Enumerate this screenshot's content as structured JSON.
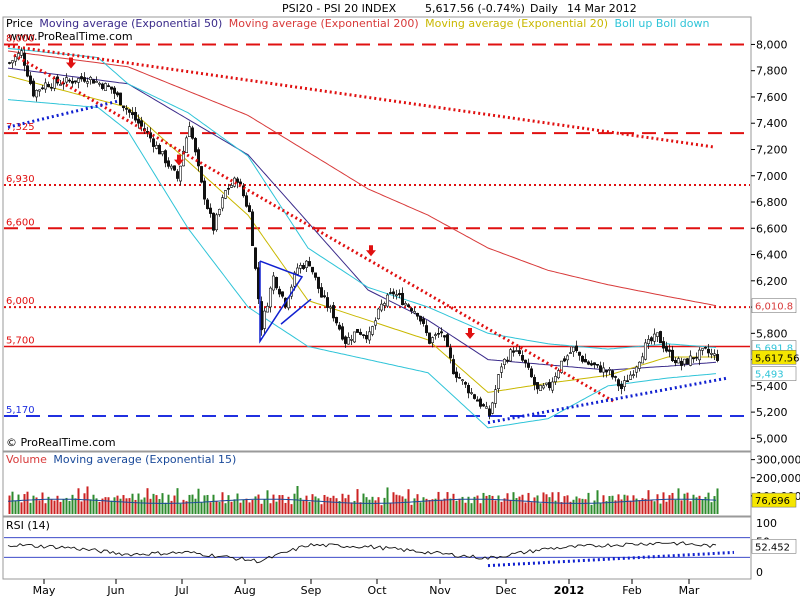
{
  "header": {
    "symbol": "PSI20 - PSI 20 INDEX",
    "quote": "5,617.56 (-0.74%)",
    "period": "Daily",
    "date": "14 Mar 2012"
  },
  "watermark_top": "www.ProRealTime.com",
  "watermark_bottom": "© ProRealTime.com",
  "price_legend": {
    "price": "Price",
    "ema50": "Moving average (Exponential 50)",
    "ema200": "Moving average (Exponential 200)",
    "ema20": "Moving average (Exponential 20)",
    "boll": "Boll up Boll down"
  },
  "volume_legend": {
    "volume": "Volume",
    "ma": "Moving average (Exponential 15)"
  },
  "rsi_legend": "RSI (14)",
  "colors": {
    "up": "#2e8b2e",
    "down": "#cc2222",
    "ema50": "#3a2a8a",
    "ema200": "#d83a3a",
    "ema20": "#c9b800",
    "boll": "#2fc4d8",
    "trend_red": "#e01010",
    "trend_blue": "#1020d0",
    "level_red": "#e01010",
    "level_blue": "#2030e0"
  },
  "chart_data": [
    {
      "type": "candlestick",
      "title": "PSI20 - PSI 20 INDEX",
      "period": "Daily",
      "x_tick_labels": [
        "May",
        "Jun",
        "Jul",
        "Aug",
        "Sep",
        "Oct",
        "Nov",
        "Dec",
        "2012",
        "Feb",
        "Mar"
      ],
      "y_tick_labels": [
        "8,000",
        "7,800",
        "7,600",
        "7,400",
        "7,200",
        "7,000",
        "6,800",
        "6,600",
        "6,400",
        "6,200",
        "6,000",
        "5,800",
        "5,600",
        "5,400",
        "5,200",
        "5,000"
      ],
      "ylim": [
        4980,
        8110
      ],
      "last_close": 5617.56,
      "last_close_label": "5,617.56",
      "change_pct": -0.74,
      "boll_up_last": "5,691.8",
      "boll_down_last": "5,493",
      "ema200_last": "6,010.8",
      "levels": [
        {
          "value": 8000,
          "label": "8,000",
          "color": "red",
          "style": "dashed"
        },
        {
          "value": 7325,
          "label": "7,325",
          "color": "red",
          "style": "dashed"
        },
        {
          "value": 6930,
          "label": "6,930",
          "color": "red",
          "style": "dotted"
        },
        {
          "value": 6600,
          "label": "6,600",
          "color": "red",
          "style": "dashed"
        },
        {
          "value": 6000,
          "label": "6,000",
          "color": "red",
          "style": "dotted"
        },
        {
          "value": 5700,
          "label": "5,700",
          "color": "red",
          "style": "solid"
        },
        {
          "value": 5170,
          "label": "5,170",
          "color": "blue",
          "style": "dashed"
        }
      ],
      "trendlines": [
        {
          "color": "red",
          "style": "dotted",
          "from": {
            "bar": 0,
            "y": 7990
          },
          "to": {
            "bar": 235,
            "y": 7220
          }
        },
        {
          "color": "red",
          "style": "dotted",
          "from": {
            "bar": 2,
            "y": 7920
          },
          "to": {
            "bar": 202,
            "y": 5280
          }
        },
        {
          "color": "blue",
          "style": "dotted",
          "from": {
            "bar": 0,
            "y": 7370
          },
          "to": {
            "bar": 37,
            "y": 7570
          }
        },
        {
          "color": "blue",
          "style": "dotted",
          "from": {
            "bar": 160,
            "y": 5120
          },
          "to": {
            "bar": 240,
            "y": 5460
          }
        }
      ],
      "series": [
        {
          "name": "Price",
          "anchors": [
            [
              0,
              7860
            ],
            [
              4,
              7940
            ],
            [
              8,
              7630
            ],
            [
              12,
              7700
            ],
            [
              20,
              7720
            ],
            [
              26,
              7750
            ],
            [
              34,
              7660
            ],
            [
              40,
              7480
            ],
            [
              46,
              7320
            ],
            [
              52,
              7120
            ],
            [
              56,
              6980
            ],
            [
              60,
              7400
            ],
            [
              64,
              6930
            ],
            [
              68,
              6600
            ],
            [
              72,
              6880
            ],
            [
              76,
              6980
            ],
            [
              80,
              6720
            ],
            [
              84,
              5850
            ],
            [
              88,
              6230
            ],
            [
              92,
              6030
            ],
            [
              96,
              6300
            ],
            [
              100,
              6340
            ],
            [
              104,
              6080
            ],
            [
              108,
              5940
            ],
            [
              112,
              5740
            ],
            [
              116,
              5820
            ],
            [
              120,
              5780
            ],
            [
              124,
              6010
            ],
            [
              128,
              6110
            ],
            [
              132,
              6030
            ],
            [
              136,
              5960
            ],
            [
              140,
              5740
            ],
            [
              144,
              5810
            ],
            [
              148,
              5520
            ],
            [
              152,
              5400
            ],
            [
              156,
              5290
            ],
            [
              160,
              5180
            ],
            [
              164,
              5560
            ],
            [
              168,
              5680
            ],
            [
              172,
              5560
            ],
            [
              176,
              5360
            ],
            [
              180,
              5400
            ],
            [
              184,
              5580
            ],
            [
              188,
              5680
            ],
            [
              192,
              5580
            ],
            [
              196,
              5540
            ],
            [
              200,
              5500
            ],
            [
              204,
              5380
            ],
            [
              208,
              5520
            ],
            [
              212,
              5700
            ],
            [
              216,
              5780
            ],
            [
              220,
              5640
            ],
            [
              224,
              5560
            ],
            [
              228,
              5620
            ],
            [
              232,
              5660
            ],
            [
              236,
              5617.56
            ]
          ]
        },
        {
          "name": "Moving average (Exponential 50)",
          "anchors": [
            [
              0,
              7820
            ],
            [
              40,
              7700
            ],
            [
              80,
              7160
            ],
            [
              120,
              6130
            ],
            [
              140,
              5900
            ],
            [
              160,
              5600
            ],
            [
              180,
              5560
            ],
            [
              200,
              5520
            ],
            [
              220,
              5550
            ],
            [
              236,
              5580
            ]
          ]
        },
        {
          "name": "Moving average (Exponential 200)",
          "anchors": [
            [
              0,
              7950
            ],
            [
              40,
              7830
            ],
            [
              80,
              7460
            ],
            [
              120,
              6900
            ],
            [
              140,
              6700
            ],
            [
              160,
              6450
            ],
            [
              180,
              6280
            ],
            [
              200,
              6170
            ],
            [
              220,
              6080
            ],
            [
              236,
              6010.8
            ]
          ]
        },
        {
          "name": "Moving average (Exponential 20)",
          "anchors": [
            [
              0,
              7760
            ],
            [
              40,
              7520
            ],
            [
              80,
              6700
            ],
            [
              100,
              6050
            ],
            [
              120,
              5900
            ],
            [
              140,
              5750
            ],
            [
              160,
              5350
            ],
            [
              180,
              5420
            ],
            [
              200,
              5480
            ],
            [
              220,
              5620
            ],
            [
              236,
              5620
            ]
          ]
        },
        {
          "name": "Boll up",
          "anchors": [
            [
              0,
              7970
            ],
            [
              30,
              7900
            ],
            [
              40,
              7700
            ],
            [
              60,
              7480
            ],
            [
              80,
              7150
            ],
            [
              100,
              6450
            ],
            [
              120,
              6150
            ],
            [
              140,
              6000
            ],
            [
              160,
              5800
            ],
            [
              180,
              5720
            ],
            [
              200,
              5680
            ],
            [
              220,
              5720
            ],
            [
              236,
              5691.8
            ]
          ]
        },
        {
          "name": "Boll down",
          "anchors": [
            [
              0,
              7580
            ],
            [
              30,
              7520
            ],
            [
              40,
              7340
            ],
            [
              60,
              6600
            ],
            [
              80,
              6000
            ],
            [
              100,
              5700
            ],
            [
              120,
              5600
            ],
            [
              140,
              5500
            ],
            [
              160,
              5080
            ],
            [
              180,
              5150
            ],
            [
              200,
              5400
            ],
            [
              220,
              5460
            ],
            [
              236,
              5493
            ]
          ]
        }
      ],
      "arrows": [
        {
          "bar": 21,
          "y": 7840
        },
        {
          "bar": 57,
          "y": 7100
        },
        {
          "bar": 121,
          "y": 6410
        },
        {
          "bar": 154,
          "y": 5780
        }
      ]
    },
    {
      "type": "bar",
      "title": "Volume",
      "y_tick_labels": [
        "300,000",
        "200,000",
        "100,000"
      ],
      "ylim": [
        0,
        320000
      ],
      "last_ma_label": "76,696",
      "avg_volume": 92000,
      "ma_level": 78000
    },
    {
      "type": "line",
      "title": "RSI (14)",
      "y_tick_labels": [
        "100",
        "50",
        "0"
      ],
      "ylim": [
        0,
        100
      ],
      "bands": [
        70,
        30
      ],
      "last_label": "52.452",
      "anchors": [
        [
          0,
          56
        ],
        [
          20,
          50
        ],
        [
          40,
          36
        ],
        [
          60,
          40
        ],
        [
          84,
          22
        ],
        [
          100,
          55
        ],
        [
          120,
          52
        ],
        [
          140,
          40
        ],
        [
          160,
          28
        ],
        [
          180,
          48
        ],
        [
          200,
          55
        ],
        [
          220,
          60
        ],
        [
          236,
          52.452
        ]
      ]
    }
  ]
}
